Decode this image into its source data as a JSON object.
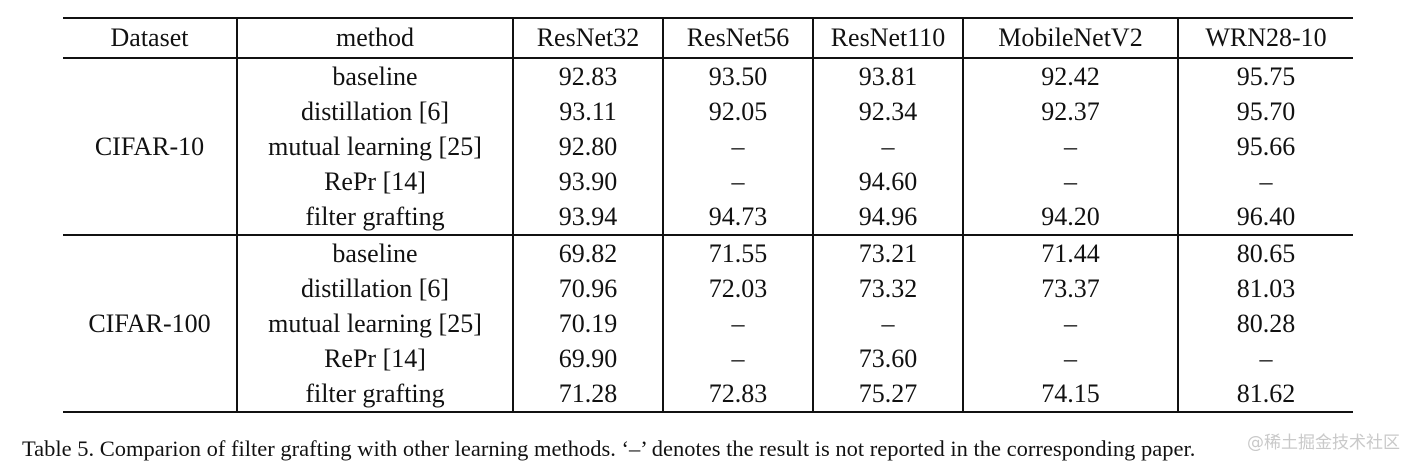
{
  "table": {
    "columns": [
      "Dataset",
      "method",
      "ResNet32",
      "ResNet56",
      "ResNet110",
      "MobileNetV2",
      "WRN28-10"
    ],
    "groups": [
      {
        "dataset": "CIFAR-10",
        "rows": [
          {
            "method": "baseline",
            "values": [
              "92.83",
              "93.50",
              "93.81",
              "92.42",
              "95.75"
            ],
            "bold": false
          },
          {
            "method": "distillation [6]",
            "values": [
              "93.11",
              "92.05",
              "92.34",
              "92.37",
              "95.70"
            ],
            "bold": false
          },
          {
            "method": "mutual learning [25]",
            "values": [
              "92.80",
              "–",
              "–",
              "–",
              "95.66"
            ],
            "bold": false
          },
          {
            "method": "RePr [14]",
            "values": [
              "93.90",
              "–",
              "94.60",
              "–",
              "–"
            ],
            "bold": false
          },
          {
            "method": "filter grafting",
            "values": [
              "93.94",
              "94.73",
              "94.96",
              "94.20",
              "96.40"
            ],
            "bold": true
          }
        ]
      },
      {
        "dataset": "CIFAR-100",
        "rows": [
          {
            "method": "baseline",
            "values": [
              "69.82",
              "71.55",
              "73.21",
              "71.44",
              "80.65"
            ],
            "bold": false
          },
          {
            "method": "distillation [6]",
            "values": [
              "70.96",
              "72.03",
              "73.32",
              "73.37",
              "81.03"
            ],
            "bold": false
          },
          {
            "method": "mutual learning [25]",
            "values": [
              "70.19",
              "–",
              "–",
              "–",
              "80.28"
            ],
            "bold": false
          },
          {
            "method": "RePr [14]",
            "values": [
              "69.90",
              "–",
              "73.60",
              "–",
              "–"
            ],
            "bold": false
          },
          {
            "method": "filter grafting",
            "values": [
              "71.28",
              "72.83",
              "75.27",
              "74.15",
              "81.62"
            ],
            "bold": true
          }
        ]
      }
    ]
  },
  "caption": "Table 5. Comparion of filter grafting with other learning methods. ‘–’ denotes the result is not reported in the corresponding paper.",
  "watermark": "@稀土掘金技术社区"
}
